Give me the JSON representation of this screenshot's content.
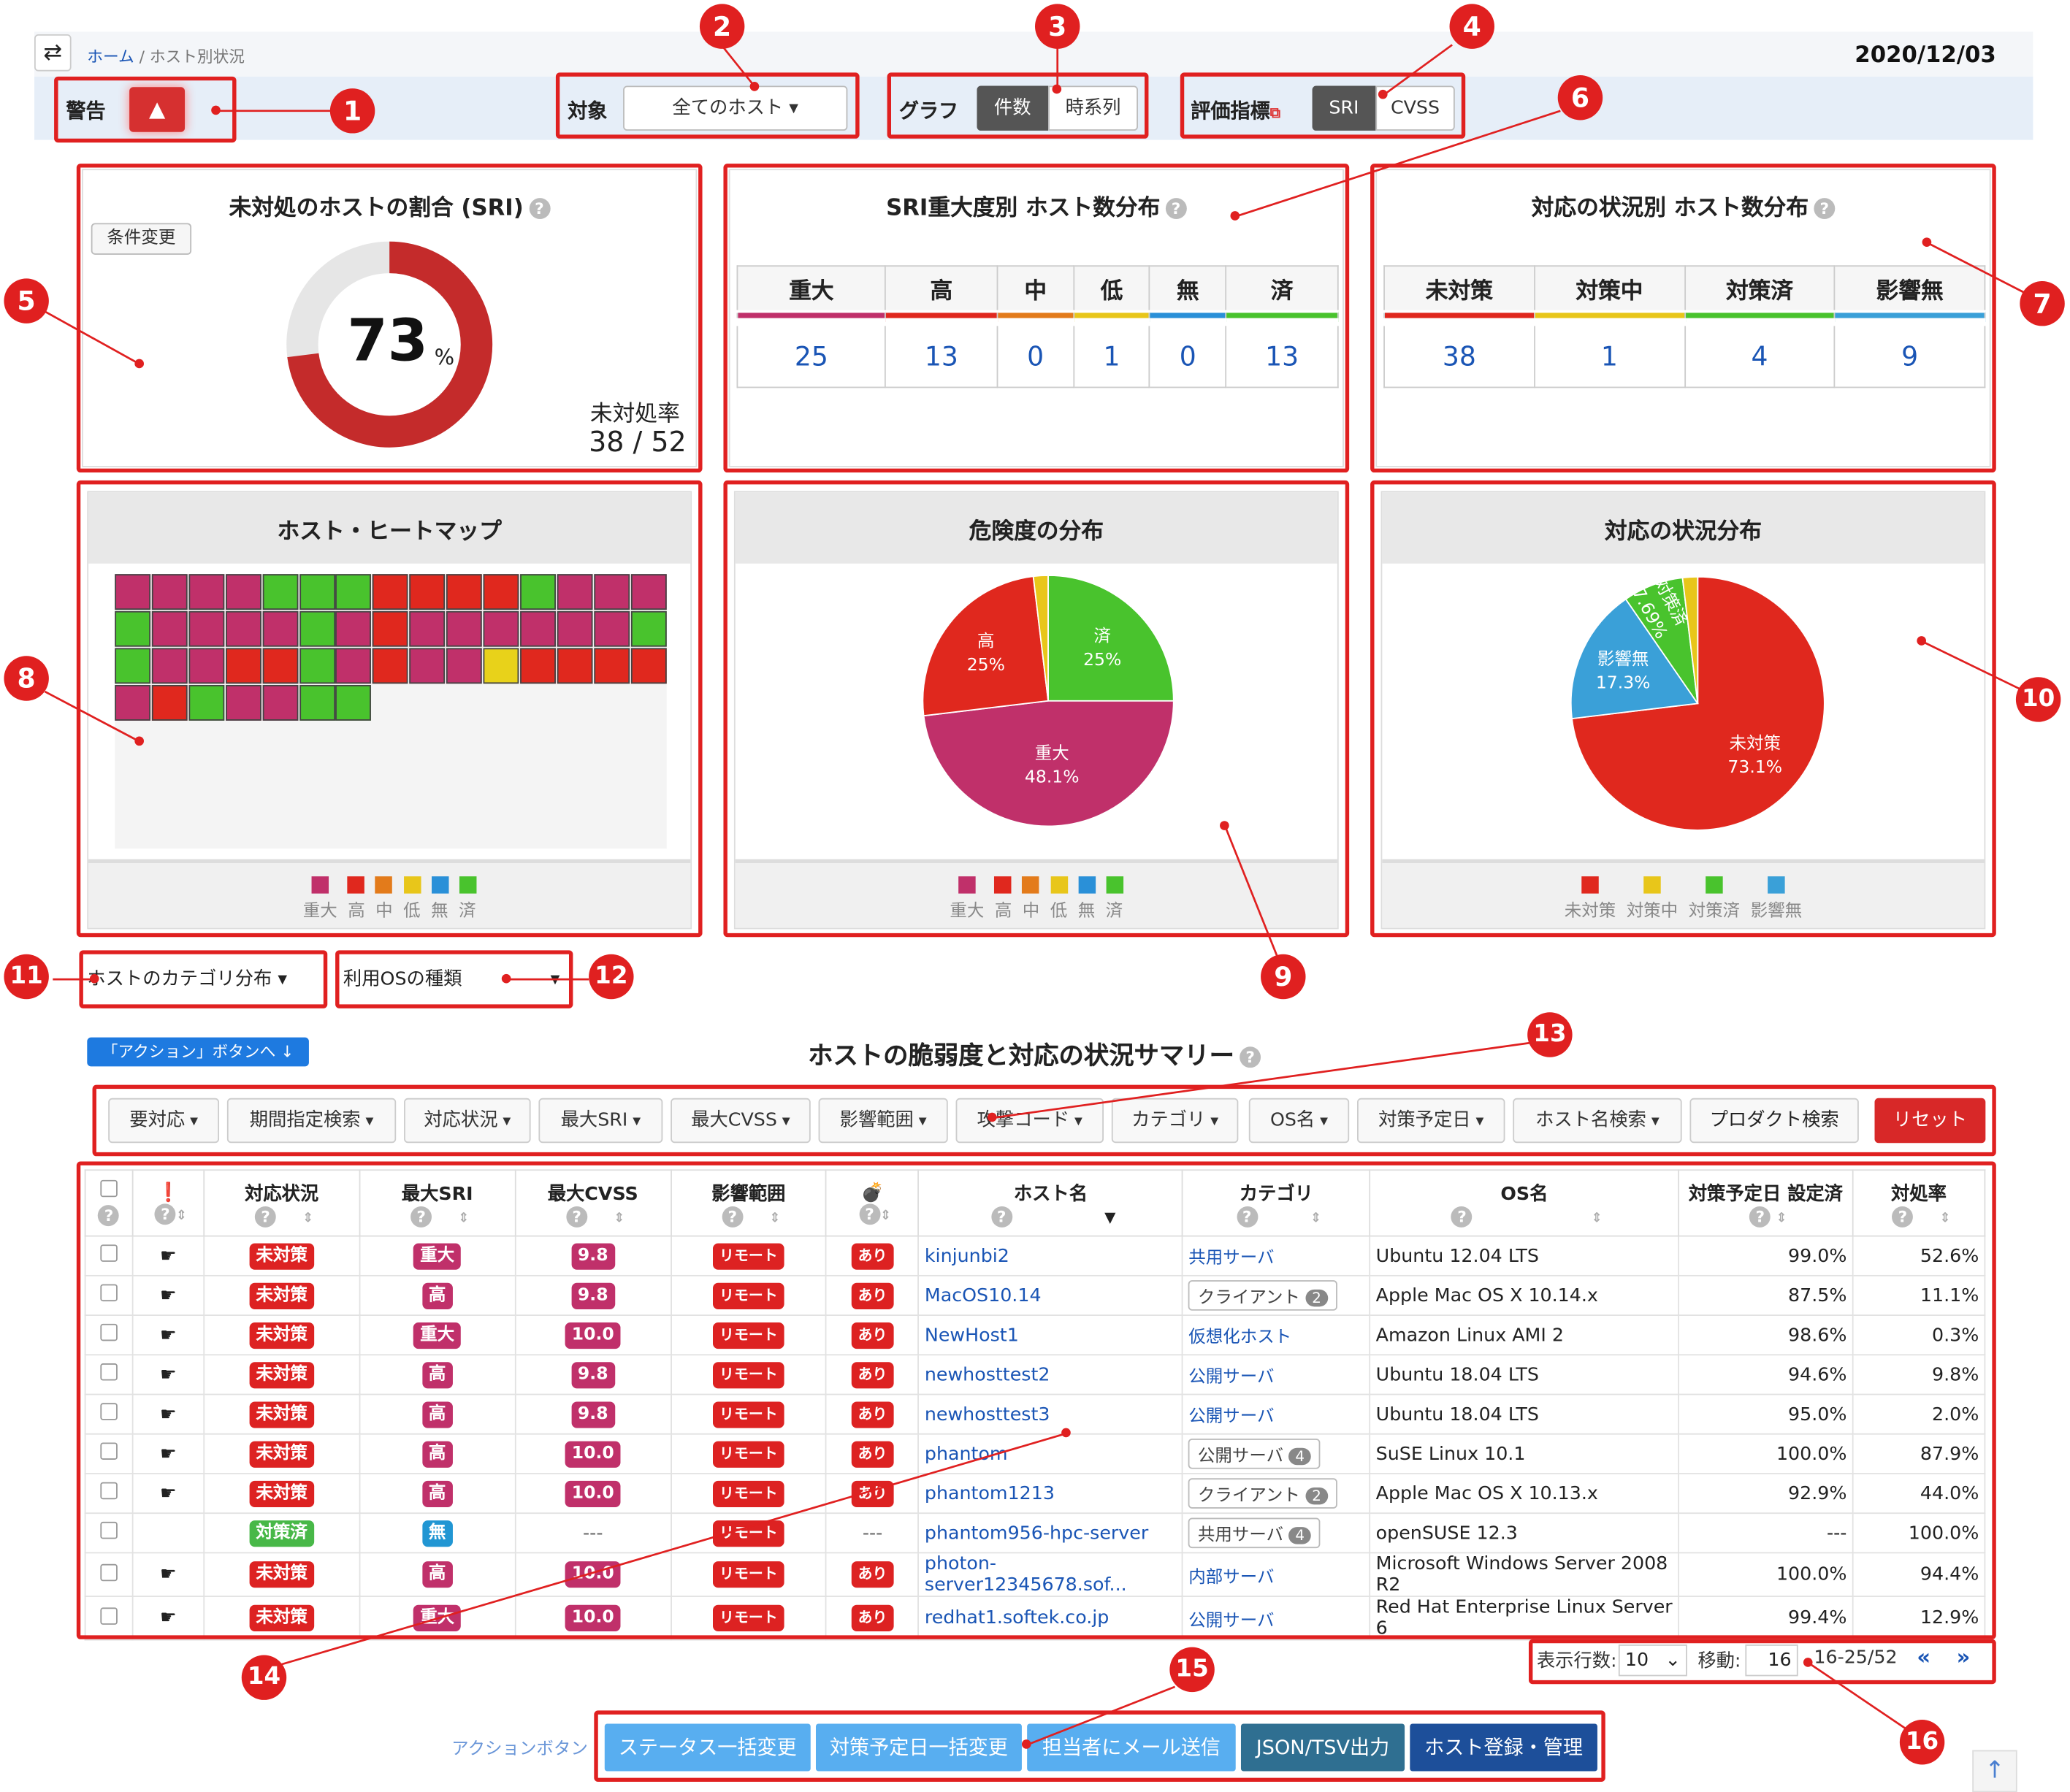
{
  "breadcrumb": {
    "home": "ホーム",
    "sep": "/",
    "current": "ホスト別状況"
  },
  "date": "2020/12/03",
  "filter": {
    "warning_label": "警告",
    "target_label": "対象",
    "target_value": "全てのホスト",
    "graph_label": "グラフ",
    "graph_count": "件数",
    "graph_time": "時系列",
    "metric_label": "評価指標",
    "metric_sri": "SRI",
    "metric_cvss": "CVSS"
  },
  "callouts": [
    "1",
    "2",
    "3",
    "4",
    "5",
    "6",
    "7",
    "8",
    "9",
    "10",
    "11",
    "12",
    "13",
    "14",
    "15",
    "16"
  ],
  "card1": {
    "title": "未対処のホストの割合 (SRI)",
    "cond_btn": "条件変更",
    "percent_value": "73",
    "percent_sign": "%",
    "rate_label": "未対処率",
    "rate_value": "38 / 52",
    "rate_fraction": 0.73
  },
  "card2": {
    "title": "SRI重大度別 ホスト数分布",
    "headers": [
      "重大",
      "高",
      "中",
      "低",
      "無",
      "済"
    ],
    "values": [
      "25",
      "13",
      "0",
      "1",
      "0",
      "13"
    ],
    "colors": [
      "#c0306a",
      "#e0281e",
      "#e37b1b",
      "#e8c61a",
      "#2a90d8",
      "#49c32d"
    ]
  },
  "card3": {
    "title": "対応の状況別 ホスト数分布",
    "headers": [
      "未対策",
      "対策中",
      "対策済",
      "影響無"
    ],
    "values": [
      "38",
      "1",
      "4",
      "9"
    ],
    "colors": [
      "#e0281e",
      "#e8c61a",
      "#49c32d",
      "#3aa0d8"
    ]
  },
  "heatmap": {
    "title": "ホスト・ヒートマップ",
    "legend": [
      "重大",
      "高",
      "中",
      "低",
      "無",
      "済"
    ],
    "rows": [
      [
        "m",
        "m",
        "m",
        "m",
        "g",
        "g",
        "g",
        "r",
        "r",
        "r",
        "r",
        "g",
        "m",
        "m",
        "m"
      ],
      [
        "g",
        "m",
        "m",
        "m",
        "m",
        "g",
        "m",
        "r",
        "m",
        "m",
        "m",
        "m",
        "m",
        "m",
        "g"
      ],
      [
        "g",
        "m",
        "m",
        "r",
        "r",
        "g",
        "m",
        "r",
        "m",
        "m",
        "y",
        "r",
        "r",
        "r",
        "r"
      ],
      [
        "m",
        "r",
        "g",
        "m",
        "m",
        "g",
        "g"
      ]
    ]
  },
  "risk_pie": {
    "title": "危険度の分布",
    "legend": [
      "重大",
      "高",
      "中",
      "低",
      "無",
      "済"
    ],
    "slices": [
      {
        "label": "重大",
        "pct": "48.1%",
        "value": 48.1
      },
      {
        "label": "高",
        "pct": "25%",
        "value": 25
      },
      {
        "label": "低",
        "pct": "",
        "value": 1.9
      },
      {
        "label": "済",
        "pct": "25%",
        "value": 25
      }
    ]
  },
  "status_pie": {
    "title": "対応の状況分布",
    "legend": [
      "未対策",
      "対策中",
      "対策済",
      "影響無"
    ],
    "slices": [
      {
        "label": "未対策",
        "pct": "73.1%",
        "value": 73.1
      },
      {
        "label": "影響無",
        "pct": "17.3%",
        "value": 17.3
      },
      {
        "label": "対策済",
        "pct": "7.69%",
        "value": 7.69
      },
      {
        "label": "対策中",
        "pct": "",
        "value": 1.92
      }
    ]
  },
  "dropdowns": {
    "category": "ホストのカテゴリ分布",
    "os": "利用OSの種類"
  },
  "summary": {
    "action_link": "「アクション」ボタンへ",
    "title": "ホストの脆弱度と対応の状況サマリー"
  },
  "filters": [
    "要対応",
    "期間指定検索",
    "対応状況",
    "最大SRI",
    "最大CVSS",
    "影響範囲",
    "攻撃コード",
    "カテゴリ",
    "OS名",
    "対策予定日",
    "ホスト名検索",
    "プロダクト検索"
  ],
  "reset": "リセット",
  "table": {
    "headers": [
      "対応状況",
      "最大SRI",
      "最大CVSS",
      "影響範囲",
      "ホスト名",
      "カテゴリ",
      "OS名",
      "対策予定日 設定済",
      "対処率"
    ],
    "rows": [
      {
        "status": "未対策",
        "sri": "重大",
        "cvss": "9.8",
        "range": "リモート",
        "exploit": "あり",
        "host": "kinjunbi2",
        "cat": "共用サーバ",
        "cat_count": "",
        "os": "Ubuntu 12.04 LTS",
        "plan": "99.0%",
        "rate": "52.6%"
      },
      {
        "status": "未対策",
        "sri": "高",
        "cvss": "9.8",
        "range": "リモート",
        "exploit": "あり",
        "host": "MacOS10.14",
        "cat": "クライアント",
        "cat_count": "2",
        "os": "Apple Mac OS X 10.14.x",
        "plan": "87.5%",
        "rate": "11.1%"
      },
      {
        "status": "未対策",
        "sri": "重大",
        "cvss": "10.0",
        "range": "リモート",
        "exploit": "あり",
        "host": "NewHost1",
        "cat": "仮想化ホスト",
        "cat_count": "",
        "os": "Amazon Linux AMI 2",
        "plan": "98.6%",
        "rate": "0.3%"
      },
      {
        "status": "未対策",
        "sri": "高",
        "cvss": "9.8",
        "range": "リモート",
        "exploit": "あり",
        "host": "newhosttest2",
        "cat": "公開サーバ",
        "cat_count": "",
        "os": "Ubuntu 18.04 LTS",
        "plan": "94.6%",
        "rate": "9.8%"
      },
      {
        "status": "未対策",
        "sri": "高",
        "cvss": "9.8",
        "range": "リモート",
        "exploit": "あり",
        "host": "newhosttest3",
        "cat": "公開サーバ",
        "cat_count": "",
        "os": "Ubuntu 18.04 LTS",
        "plan": "95.0%",
        "rate": "2.0%"
      },
      {
        "status": "未対策",
        "sri": "高",
        "cvss": "10.0",
        "range": "リモート",
        "exploit": "あり",
        "host": "phantom",
        "cat": "公開サーバ",
        "cat_count": "4",
        "os": "SuSE Linux 10.1",
        "plan": "100.0%",
        "rate": "87.9%"
      },
      {
        "status": "未対策",
        "sri": "高",
        "cvss": "10.0",
        "range": "リモート",
        "exploit": "あり",
        "host": "phantom1213",
        "cat": "クライアント",
        "cat_count": "2",
        "os": "Apple Mac OS X 10.13.x",
        "plan": "92.9%",
        "rate": "44.0%"
      },
      {
        "status": "対策済",
        "sri": "無",
        "cvss": "---",
        "range": "リモート",
        "exploit": "---",
        "host": "phantom956-hpc-server",
        "cat": "共用サーバ",
        "cat_count": "4",
        "os": "openSUSE 12.3",
        "plan": "---",
        "rate": "100.0%"
      },
      {
        "status": "未対策",
        "sri": "高",
        "cvss": "10.0",
        "range": "リモート",
        "exploit": "あり",
        "host": "photon-server12345678.sof...",
        "cat": "内部サーバ",
        "cat_count": "",
        "os": "Microsoft Windows Server 2008 R2",
        "plan": "100.0%",
        "rate": "94.4%"
      },
      {
        "status": "未対策",
        "sri": "重大",
        "cvss": "10.0",
        "range": "リモート",
        "exploit": "あり",
        "host": "redhat1.softek.co.jp",
        "cat": "公開サーバ",
        "cat_count": "",
        "os": "Red Hat Enterprise Linux Server 6",
        "plan": "99.4%",
        "rate": "12.9%"
      }
    ]
  },
  "pagination": {
    "rows_label": "表示行数:",
    "rows_value": "10",
    "move_label": "移動:",
    "move_value": "16",
    "range": "16-25/52",
    "prev": "«",
    "next": "»"
  },
  "actions": {
    "label": "アクションボタン",
    "buttons": [
      "ステータス一括変更",
      "対策予定日一括変更",
      "担当者にメール送信",
      "JSON/TSV出力",
      "ホスト登録・管理"
    ]
  }
}
